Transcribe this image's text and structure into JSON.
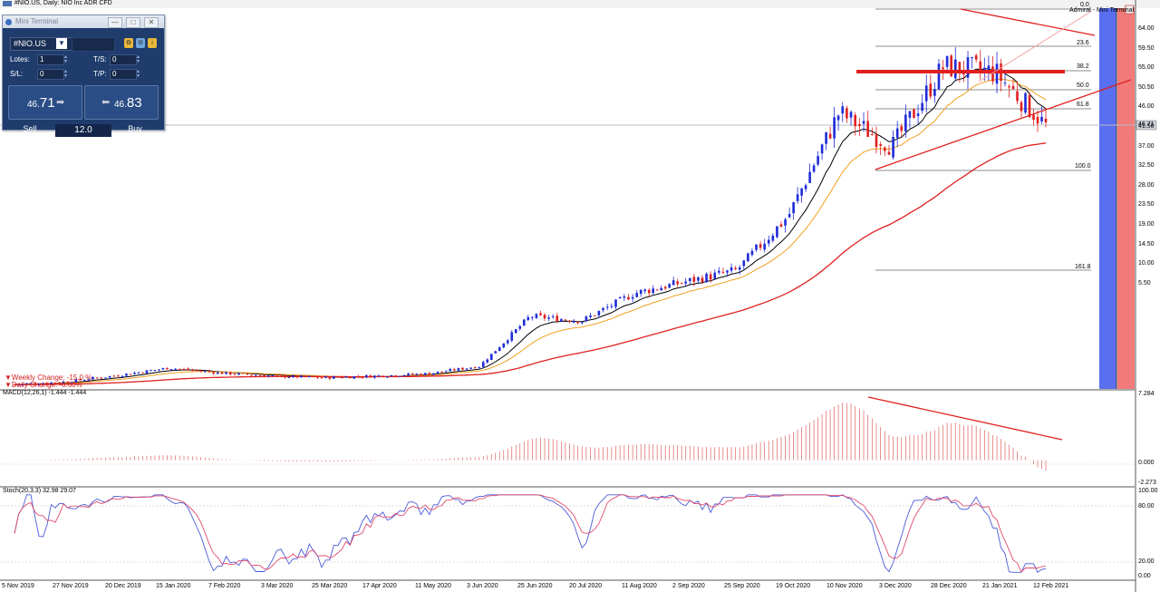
{
  "title": "#NIO.US, Daily:  NIO Inc ADR CFD",
  "top_right_label": "Admiral - Mini Terminal",
  "mini_terminal": {
    "title": "Mini Terminal",
    "symbol": "#NIO.US",
    "lots_label": "Lotes:",
    "lots_value": "1",
    "ts_label": "T/S:",
    "ts_value": "0",
    "sl_label": "S/L:",
    "sl_value": "0",
    "tp_label": "T/P:",
    "tp_value": "0",
    "sell_price_small": "46.",
    "sell_price_big": "71",
    "buy_price_small": "46.",
    "buy_price_big": "83",
    "sell_label": "Sell",
    "buy_label": "Buy",
    "spread": "12.0"
  },
  "weekly_change": "▼Weekly Change: -15.0 %",
  "daily_change": "▼Daily Change: -6.60%",
  "current_price_label": "46.71",
  "price_axis": [
    "64.00",
    "59.50",
    "55.00",
    "50.50",
    "46.00",
    "41.50",
    "37.00",
    "32.50",
    "28.00",
    "23.50",
    "19.00",
    "14.50",
    "10.00",
    "5.50"
  ],
  "fib_levels": [
    "0.0",
    "23.6",
    "38.2",
    "50.0",
    "61.8",
    "100.0",
    "161.8"
  ],
  "macd": {
    "label": "MACD(12,26,1) -1.444 -1.444",
    "axis": [
      "7.284",
      "0.000",
      "-2.273"
    ]
  },
  "stoch": {
    "label": "Stoch(20,3,3) 32.98 29.07",
    "axis": [
      "100.00",
      "80.00",
      "20.00",
      "0.00"
    ]
  },
  "date_axis": [
    "5 Nov 2019",
    "27 Nov 2019",
    "20 Dec 2019",
    "15 Jan 2020",
    "7 Feb 2020",
    "3 Mar 2020",
    "25 Mar 2020",
    "17 Apr 2020",
    "11 May 2020",
    "3 Jun 2020",
    "25 Jun 2020",
    "20 Jul 2020",
    "11 Aug 2020",
    "2 Sep 2020",
    "25 Sep 2020",
    "19 Oct 2020",
    "10 Nov 2020",
    "3 Dec 2020",
    "28 Dec 2020",
    "21 Jan 2021",
    "12 Feb 2021"
  ],
  "colors": {
    "bull": "#1e2bd8",
    "bear": "#e02020",
    "ema_short": "#000000",
    "ema_mid": "#f0a020",
    "ema_long": "#e02020",
    "trendline": "#e02020",
    "band_blue": "#5a6ef0",
    "band_red": "#f27a7a"
  },
  "chart_data": {
    "type": "line",
    "title": "#NIO.US, Daily:  NIO Inc ADR CFD",
    "x": [
      "5 Nov 2019",
      "27 Nov 2019",
      "20 Dec 2019",
      "15 Jan 2020",
      "7 Feb 2020",
      "3 Mar 2020",
      "25 Mar 2020",
      "17 Apr 2020",
      "11 May 2020",
      "3 Jun 2020",
      "25 Jun 2020",
      "20 Jul 2020",
      "11 Aug 2020",
      "2 Sep 2020",
      "25 Sep 2020",
      "19 Oct 2020",
      "10 Nov 2020",
      "3 Dec 2020",
      "28 Dec 2020",
      "21 Jan 2021",
      "12 Feb 2021"
    ],
    "series": [
      {
        "name": "close",
        "values": [
          1.6,
          2.1,
          3.2,
          4.5,
          3.6,
          3.1,
          2.8,
          3.1,
          3.5,
          4.8,
          13.5,
          12.7,
          17.5,
          19.5,
          21.5,
          31.0,
          49.0,
          43.0,
          57.0,
          56.0,
          46.71
        ]
      }
    ],
    "ylim": [
      1.0,
      67.0
    ],
    "grid": false,
    "legend": "none"
  }
}
